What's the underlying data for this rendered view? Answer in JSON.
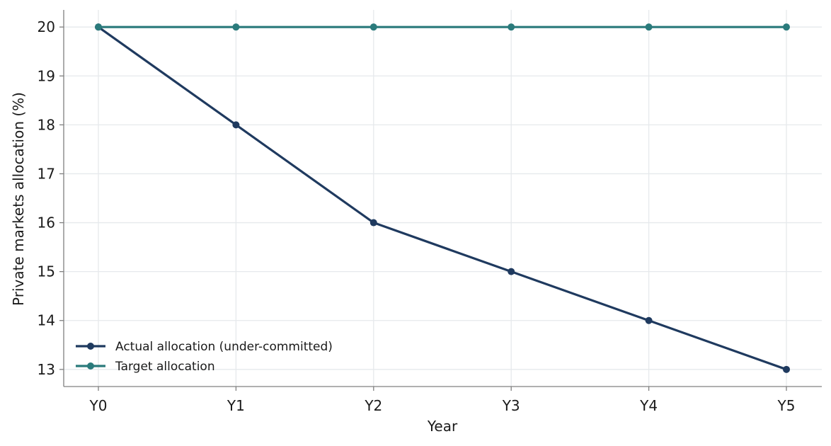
{
  "chart_data": {
    "type": "line",
    "title": "",
    "xlabel": "Year",
    "ylabel": "Private markets allocation (%)",
    "categories": [
      "Y0",
      "Y1",
      "Y2",
      "Y3",
      "Y4",
      "Y5"
    ],
    "yticks": [
      13,
      14,
      15,
      16,
      17,
      18,
      19,
      20
    ],
    "ylim": [
      12.65,
      20.35
    ],
    "grid": true,
    "legend_position": "lower-left",
    "series": [
      {
        "name": "Actual allocation (under-committed)",
        "color": "#1f3a5f",
        "values": [
          20,
          18,
          16,
          15,
          14,
          13
        ]
      },
      {
        "name": "Target allocation",
        "color": "#2a7a7b",
        "values": [
          20,
          20,
          20,
          20,
          20,
          20
        ]
      }
    ]
  }
}
